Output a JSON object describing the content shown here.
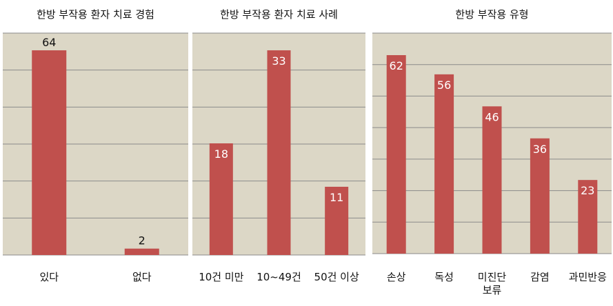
{
  "chart_data": [
    {
      "type": "bar",
      "title": "한방 부작용 환자 치료 경험",
      "categories": [
        "있다",
        "없다"
      ],
      "values": [
        64,
        2
      ],
      "ylim": [
        0,
        64
      ],
      "grid": true
    },
    {
      "type": "bar",
      "title": "한방 부작용 환자 치료 사례",
      "categories": [
        "10건 미만",
        "10~49건",
        "50건 이상"
      ],
      "values": [
        18,
        33,
        11
      ],
      "ylim": [
        0,
        33
      ],
      "grid": true
    },
    {
      "type": "bar",
      "title": "한방 부작용 유형",
      "categories": [
        "손상",
        "독성",
        "미진단\n보류",
        "감염",
        "과민반응"
      ],
      "values": [
        62,
        56,
        46,
        36,
        23
      ],
      "ylim": [
        0,
        62
      ],
      "grid": true
    }
  ],
  "colors": {
    "bar": "#c0504d",
    "plot_bg": "#dcd7c6",
    "grid": "#8a8a8a",
    "label_inside": "#ffffff",
    "label_outside": "#111111"
  }
}
